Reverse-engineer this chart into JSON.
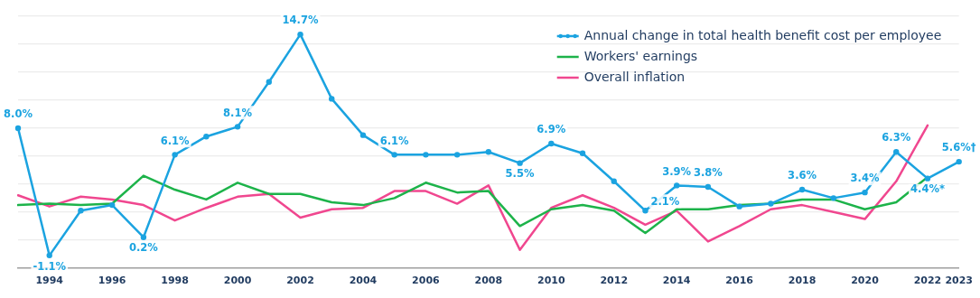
{
  "chart_data": {
    "type": "line",
    "categories": [
      null,
      "1994",
      null,
      "1996",
      null,
      "1998",
      null,
      "2000",
      null,
      "2002",
      null,
      "2004",
      null,
      "2006",
      null,
      "2008",
      null,
      "2010",
      null,
      "2012",
      null,
      "2014",
      null,
      "2016",
      null,
      "2018",
      null,
      "2020",
      null,
      "2022",
      "2023"
    ],
    "series": [
      {
        "name": "Annual change in total health benefit cost per employee",
        "color": "#1ba3e0",
        "marker": "circle",
        "values": [
          8.0,
          -1.1,
          2.1,
          2.5,
          0.2,
          6.1,
          7.4,
          8.1,
          11.3,
          14.7,
          10.1,
          7.5,
          6.1,
          6.1,
          6.1,
          6.3,
          5.5,
          6.9,
          6.2,
          4.2,
          2.1,
          3.9,
          3.8,
          2.4,
          2.6,
          3.6,
          3.0,
          3.4,
          6.3,
          4.4,
          5.6
        ],
        "value_labels": [
          "8.0%",
          "-1.1%",
          null,
          null,
          "0.2%",
          "6.1%",
          null,
          "8.1%",
          null,
          "14.7%",
          null,
          null,
          "6.1%",
          null,
          null,
          null,
          "5.5%",
          "6.9%",
          null,
          null,
          "2.1%",
          "3.9%",
          "3.8%",
          null,
          null,
          "3.6%",
          null,
          "3.4%",
          "6.3%",
          "4.4%*",
          "5.6%†"
        ]
      },
      {
        "name": "Workers' earnings",
        "color": "#1db34a",
        "marker": "none",
        "values": [
          2.5,
          2.6,
          2.5,
          2.6,
          4.6,
          3.6,
          2.9,
          4.1,
          3.3,
          3.3,
          2.7,
          2.5,
          3.0,
          4.1,
          3.4,
          3.5,
          1.0,
          2.2,
          2.5,
          2.1,
          0.5,
          2.2,
          2.2,
          2.5,
          2.6,
          2.9,
          2.9,
          2.2,
          2.7,
          4.5,
          null
        ]
      },
      {
        "name": "Overall inflation",
        "color": "#f0478f",
        "marker": "none",
        "values": [
          3.2,
          2.4,
          3.1,
          2.9,
          2.5,
          1.4,
          2.3,
          3.1,
          3.3,
          1.6,
          2.2,
          2.3,
          3.5,
          3.5,
          2.6,
          3.9,
          -0.7,
          2.3,
          3.2,
          2.3,
          1.1,
          2.1,
          -0.1,
          1.0,
          2.2,
          2.5,
          2.0,
          1.5,
          4.2,
          8.2,
          null
        ]
      }
    ],
    "ylim": [
      -2,
      16
    ],
    "yticks": [
      {
        "value": -2,
        "label": null
      },
      {
        "value": 0,
        "label": null
      },
      {
        "value": 2,
        "label": null
      },
      {
        "value": 4,
        "label": null
      },
      {
        "value": 6,
        "label": null
      },
      {
        "value": 8,
        "label": null
      },
      {
        "value": 10,
        "label": null
      },
      {
        "value": 12,
        "label": null
      },
      {
        "value": 14,
        "label": null
      },
      {
        "value": 16,
        "label": null
      }
    ],
    "tick_labels": "x",
    "grid": "y",
    "legend": "top right"
  }
}
